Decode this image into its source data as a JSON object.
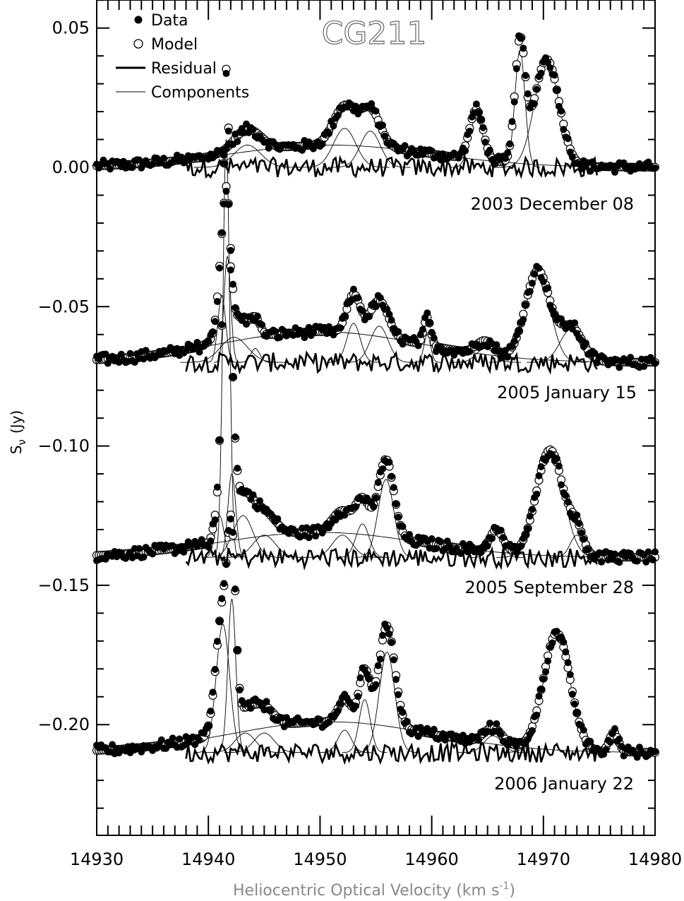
{
  "chart_data": {
    "type": "scatter",
    "title": "CG211",
    "xlabel": "Heliocentric Optical Velocity (km s",
    "xlabel_sup": "-1",
    "xlabel_end": ")",
    "ylabel": "S",
    "ylabel_sub": "ν",
    "ylabel_unit": "(Jy)",
    "xlim": [
      14930,
      14980
    ],
    "ylim": [
      -0.24,
      0.06
    ],
    "x_ticks": [
      14930,
      14940,
      14950,
      14960,
      14970,
      14980
    ],
    "x_tick_labels": [
      "14930",
      "14940",
      "14950",
      "14960",
      "14970",
      "14980"
    ],
    "y_ticks": [
      0.05,
      0.0,
      -0.05,
      -0.1,
      -0.15,
      -0.2
    ],
    "y_tick_labels": [
      "0.05",
      "0.00",
      "−0.05",
      "−0.10",
      "−0.15",
      "−0.20"
    ],
    "grid": false,
    "legend_position": "top-left",
    "legend": [
      {
        "marker": "filled-circle",
        "label": "Data"
      },
      {
        "marker": "open-circle",
        "label": "Model"
      },
      {
        "marker": "thick-line",
        "label": "Residual"
      },
      {
        "marker": "thin-line",
        "label": "Components"
      }
    ],
    "series": [
      {
        "name": "2003 December 08",
        "baseline": 0.0,
        "residual_offset": 0.0,
        "broad": {
          "amp": 0.008,
          "center": 14951,
          "sigma": 9
        },
        "components": [
          {
            "amp": 0.008,
            "center": 14943.5,
            "sigma": 1.2
          },
          {
            "amp": 0.014,
            "center": 14952.2,
            "sigma": 1.0
          },
          {
            "amp": 0.013,
            "center": 14954.5,
            "sigma": 0.9
          },
          {
            "amp": 0.018,
            "center": 14964.0,
            "sigma": 0.6
          },
          {
            "amp": 0.042,
            "center": 14967.9,
            "sigma": 0.45
          },
          {
            "amp": 0.038,
            "center": 14970.3,
            "sigma": 1.1
          }
        ]
      },
      {
        "name": "2005 January 15",
        "baseline": -0.07,
        "residual_offset": -0.07,
        "broad": {
          "amp": 0.011,
          "center": 14950,
          "sigma": 9
        },
        "components": [
          {
            "amp": 0.024,
            "center": 14941.2,
            "sigma": 0.35
          },
          {
            "amp": 0.038,
            "center": 14941.7,
            "sigma": 0.3
          },
          {
            "amp": 0.009,
            "center": 14942.3,
            "sigma": 1.2
          },
          {
            "amp": 0.005,
            "center": 14944.2,
            "sigma": 0.4
          },
          {
            "amp": 0.014,
            "center": 14953.0,
            "sigma": 0.6
          },
          {
            "amp": 0.013,
            "center": 14955.3,
            "sigma": 0.8
          },
          {
            "amp": 0.01,
            "center": 14959.6,
            "sigma": 0.3
          },
          {
            "amp": 0.005,
            "center": 14964.8,
            "sigma": 0.8
          },
          {
            "amp": 0.032,
            "center": 14969.5,
            "sigma": 1.1
          },
          {
            "amp": 0.012,
            "center": 14972.5,
            "sigma": 1.0
          }
        ]
      },
      {
        "name": "2005 September 28",
        "baseline": -0.14,
        "residual_offset": -0.14,
        "broad": {
          "amp": 0.009,
          "center": 14950,
          "sigma": 9
        },
        "components": [
          {
            "amp": 0.015,
            "center": 14941.0,
            "sigma": 0.4
          },
          {
            "amp": 0.15,
            "center": 14941.6,
            "sigma": 0.3
          },
          {
            "amp": 0.03,
            "center": 14942.1,
            "sigma": 0.35
          },
          {
            "amp": 0.015,
            "center": 14943.1,
            "sigma": 0.9
          },
          {
            "amp": 0.008,
            "center": 14945.0,
            "sigma": 1.0
          },
          {
            "amp": 0.008,
            "center": 14952.0,
            "sigma": 0.9
          },
          {
            "amp": 0.012,
            "center": 14953.8,
            "sigma": 0.6
          },
          {
            "amp": 0.028,
            "center": 14955.9,
            "sigma": 0.7
          },
          {
            "amp": 0.008,
            "center": 14965.8,
            "sigma": 0.6
          },
          {
            "amp": 0.038,
            "center": 14970.6,
            "sigma": 1.2
          },
          {
            "amp": 0.008,
            "center": 14973.0,
            "sigma": 0.6
          }
        ]
      },
      {
        "name": "2006 January 22",
        "baseline": -0.21,
        "residual_offset": -0.21,
        "broad": {
          "amp": 0.011,
          "center": 14951,
          "sigma": 9
        },
        "components": [
          {
            "amp": 0.046,
            "center": 14941.3,
            "sigma": 0.6
          },
          {
            "amp": 0.055,
            "center": 14942.1,
            "sigma": 0.35
          },
          {
            "amp": 0.007,
            "center": 14943.3,
            "sigma": 0.9
          },
          {
            "amp": 0.007,
            "center": 14945.0,
            "sigma": 0.9
          },
          {
            "amp": 0.008,
            "center": 14952.2,
            "sigma": 0.6
          },
          {
            "amp": 0.019,
            "center": 14954.0,
            "sigma": 0.5
          },
          {
            "amp": 0.036,
            "center": 14956.0,
            "sigma": 0.7
          },
          {
            "amp": 0.006,
            "center": 14965.5,
            "sigma": 0.8
          },
          {
            "amp": 0.042,
            "center": 14971.2,
            "sigma": 1.2
          },
          {
            "amp": 0.007,
            "center": 14976.3,
            "sigma": 0.4
          }
        ]
      }
    ],
    "annotations": [
      "2003 December 08",
      "2005 January 15",
      "2005 September 28",
      "2006 January 22"
    ]
  }
}
